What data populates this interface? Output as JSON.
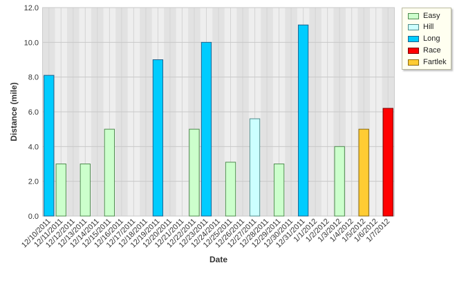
{
  "chart_data": {
    "type": "bar",
    "xlabel": "Date",
    "ylabel": "Distance (mile)",
    "ylim": [
      0,
      12
    ],
    "yticks": [
      "0.0",
      "2.0",
      "4.0",
      "6.0",
      "8.0",
      "10.0",
      "12.0"
    ],
    "grid": true,
    "legend_position": "top-right",
    "categories": [
      "12/10/2011",
      "12/11/2011",
      "12/12/2011",
      "12/13/2011",
      "12/14/2011",
      "12/15/2011",
      "12/16/2011",
      "12/17/2011",
      "12/18/2011",
      "12/19/2011",
      "12/20/2011",
      "12/21/2011",
      "12/22/2011",
      "12/23/2011",
      "12/24/2011",
      "12/25/2011",
      "12/26/2011",
      "12/27/2011",
      "12/28/2011",
      "12/29/2011",
      "12/30/2011",
      "12/31/2011",
      "1/1/2012",
      "1/2/2012",
      "1/3/2012",
      "1/4/2012",
      "1/5/2012",
      "1/6/2012",
      "1/7/2012"
    ],
    "series": [
      {
        "name": "Easy",
        "color": "#ccffcc",
        "border": "#4f8a4f",
        "values": [
          null,
          3.0,
          null,
          3.0,
          null,
          5.0,
          null,
          null,
          null,
          null,
          null,
          null,
          5.0,
          null,
          null,
          3.1,
          null,
          null,
          null,
          3.0,
          null,
          null,
          null,
          null,
          4.0,
          null,
          null,
          null,
          null
        ]
      },
      {
        "name": "Hill",
        "color": "#ccffff",
        "border": "#4f8a8a",
        "values": [
          null,
          null,
          null,
          null,
          null,
          null,
          null,
          null,
          null,
          null,
          null,
          null,
          null,
          null,
          null,
          null,
          null,
          5.6,
          null,
          null,
          null,
          null,
          null,
          null,
          null,
          null,
          null,
          null,
          null
        ]
      },
      {
        "name": "Long",
        "color": "#00ccff",
        "border": "#1f5f8a",
        "values": [
          8.1,
          null,
          null,
          null,
          null,
          null,
          null,
          null,
          null,
          9.0,
          null,
          null,
          null,
          10.0,
          null,
          null,
          null,
          null,
          null,
          null,
          null,
          11.0,
          null,
          null,
          null,
          null,
          null,
          null,
          null
        ]
      },
      {
        "name": "Race",
        "color": "#ff0000",
        "border": "#7a0000",
        "values": [
          null,
          null,
          null,
          null,
          null,
          null,
          null,
          null,
          null,
          null,
          null,
          null,
          null,
          null,
          null,
          null,
          null,
          null,
          null,
          null,
          null,
          null,
          null,
          null,
          null,
          null,
          null,
          null,
          6.2
        ]
      },
      {
        "name": "Fartlek",
        "color": "#ffcc33",
        "border": "#8a6a10",
        "values": [
          null,
          null,
          null,
          null,
          null,
          null,
          null,
          null,
          null,
          null,
          null,
          null,
          null,
          null,
          null,
          null,
          null,
          null,
          null,
          null,
          null,
          null,
          null,
          null,
          null,
          null,
          5.0,
          null,
          null
        ]
      }
    ]
  }
}
